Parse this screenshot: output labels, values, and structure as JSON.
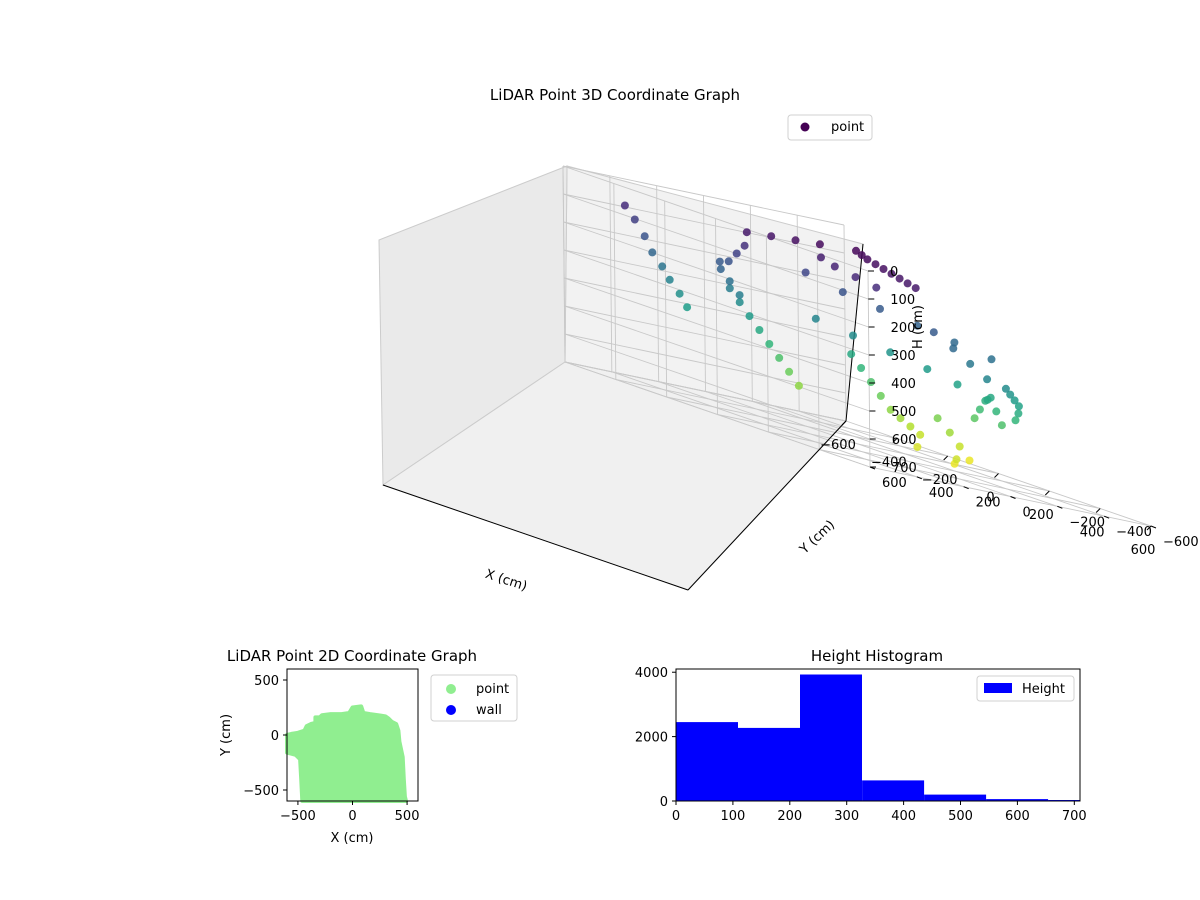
{
  "chart_data": [
    {
      "type": "scatter3d",
      "title": "LiDAR Point 3D Coordinate Graph",
      "xlabel": "X (cm)",
      "ylabel": "Y (cm)",
      "zlabel": "H (cm)",
      "xlim": [
        -600,
        600
      ],
      "ylim": [
        -600,
        600
      ],
      "zlim": [
        700,
        0
      ],
      "xticks": [
        -600,
        -400,
        -200,
        0,
        200,
        400,
        600
      ],
      "yticks": [
        -600,
        -400,
        -200,
        0,
        200,
        400,
        600
      ],
      "zticks": [
        0,
        100,
        200,
        300,
        400,
        500,
        600,
        700
      ],
      "xtick_labels": [
        "−600",
        "−400",
        "−200",
        "0",
        "200",
        "400",
        "600"
      ],
      "ytick_labels": [
        "−600",
        "−400",
        "−200",
        "0",
        "200",
        "400",
        "600"
      ],
      "ztick_labels": [
        "0",
        "100",
        "200",
        "300",
        "400",
        "500",
        "600",
        "700"
      ],
      "colormap": "viridis",
      "grid": true,
      "legend": {
        "position": "top-right",
        "entries": [
          {
            "label": "point",
            "color": "#440154"
          }
        ]
      },
      "series": [
        {
          "name": "point",
          "description_values": "sample of point cloud, [x, y, h] in cm",
          "points": [
            [
              -560,
              380,
              90
            ],
            [
              -540,
              360,
              130
            ],
            [
              -520,
              340,
              180
            ],
            [
              -500,
              330,
              230
            ],
            [
              -480,
              310,
              270
            ],
            [
              -460,
              300,
              310
            ],
            [
              -440,
              280,
              350
            ],
            [
              -420,
              270,
              390
            ],
            [
              -400,
              150,
              200
            ],
            [
              -380,
              130,
              260
            ],
            [
              -360,
              110,
              300
            ],
            [
              -500,
              0,
              300
            ],
            [
              -480,
              -20,
              340
            ],
            [
              -460,
              -40,
              380
            ],
            [
              -440,
              -60,
              420
            ],
            [
              -420,
              -80,
              460
            ],
            [
              -400,
              -100,
              500
            ],
            [
              -380,
              -120,
              540
            ],
            [
              -360,
              -140,
              580
            ],
            [
              -300,
              -300,
              420
            ],
            [
              -280,
              -320,
              460
            ],
            [
              -260,
              -340,
              500
            ],
            [
              -240,
              -360,
              540
            ],
            [
              -220,
              -380,
              580
            ],
            [
              -200,
              -400,
              600
            ],
            [
              -180,
              -420,
              620
            ],
            [
              -160,
              -440,
              640
            ],
            [
              -100,
              -450,
              560
            ],
            [
              -80,
              -480,
              600
            ],
            [
              -60,
              -500,
              640
            ],
            [
              -40,
              -520,
              680
            ],
            [
              0,
              -500,
              520
            ],
            [
              40,
              -480,
              480
            ],
            [
              80,
              -460,
              440
            ],
            [
              120,
              -440,
              420
            ],
            [
              160,
              -420,
              460
            ],
            [
              200,
              -400,
              500
            ],
            [
              300,
              -350,
              460
            ],
            [
              330,
              -330,
              430
            ],
            [
              360,
              -300,
              400
            ],
            [
              380,
              -260,
              380
            ],
            [
              400,
              -220,
              360
            ],
            [
              420,
              -180,
              340
            ],
            [
              0,
              0,
              10
            ],
            [
              50,
              30,
              15
            ],
            [
              100,
              60,
              20
            ],
            [
              150,
              80,
              25
            ],
            [
              200,
              100,
              30
            ],
            [
              250,
              120,
              35
            ],
            [
              300,
              140,
              40
            ],
            [
              350,
              160,
              45
            ],
            [
              400,
              180,
              50
            ],
            [
              -50,
              100,
              20
            ],
            [
              -100,
              150,
              30
            ],
            [
              -150,
              200,
              40
            ],
            [
              -200,
              250,
              50
            ],
            [
              0,
              150,
              60
            ],
            [
              100,
              200,
              70
            ],
            [
              200,
              220,
              80
            ],
            [
              300,
              240,
              90
            ],
            [
              -200,
              0,
              150
            ],
            [
              -100,
              -50,
              180
            ],
            [
              0,
              -100,
              200
            ],
            [
              100,
              -150,
              220
            ],
            [
              200,
              -200,
              240
            ],
            [
              300,
              -250,
              260
            ],
            [
              -300,
              -150,
              320
            ],
            [
              -200,
              -200,
              340
            ],
            [
              -100,
              -250,
              360
            ],
            [
              0,
              -300,
              380
            ],
            [
              100,
              -320,
              400
            ],
            [
              200,
              -340,
              420
            ],
            [
              350,
              50,
              200
            ],
            [
              380,
              0,
              240
            ],
            [
              400,
              -50,
              280
            ],
            [
              420,
              -100,
              320
            ],
            [
              -350,
              200,
              220
            ],
            [
              -300,
              220,
              180
            ],
            [
              -250,
              240,
              140
            ],
            [
              -200,
              260,
              100
            ],
            [
              50,
              -200,
              660
            ],
            [
              150,
              -250,
              680
            ],
            [
              250,
              -150,
              650
            ]
          ]
        }
      ]
    },
    {
      "type": "scatter",
      "title": "LiDAR Point 2D Coordinate Graph",
      "xlabel": "X (cm)",
      "ylabel": "Y (cm)",
      "xlim": [
        -600,
        600
      ],
      "ylim": [
        -600,
        600
      ],
      "xticks": [
        -500,
        0,
        500
      ],
      "yticks": [
        -500,
        0,
        500
      ],
      "xtick_labels": [
        "−500",
        "0",
        "500"
      ],
      "ytick_labels": [
        "−500",
        "0",
        "500"
      ],
      "legend": {
        "position": "outside-right",
        "entries": [
          {
            "label": "point",
            "color": "#90ee90"
          },
          {
            "label": "wall",
            "color": "#0000ff"
          }
        ]
      },
      "series": [
        {
          "name": "point",
          "color": "#90ee90",
          "outline": [
            [
              -600,
              0
            ],
            [
              -560,
              10
            ],
            [
              -500,
              20
            ],
            [
              -440,
              40
            ],
            [
              -420,
              80
            ],
            [
              -380,
              100
            ],
            [
              -340,
              110
            ],
            [
              -340,
              160
            ],
            [
              -300,
              160
            ],
            [
              -280,
              180
            ],
            [
              -200,
              190
            ],
            [
              -100,
              190
            ],
            [
              -30,
              200
            ],
            [
              0,
              250
            ],
            [
              80,
              260
            ],
            [
              100,
              200
            ],
            [
              160,
              190
            ],
            [
              300,
              170
            ],
            [
              330,
              150
            ],
            [
              360,
              120
            ],
            [
              400,
              100
            ],
            [
              420,
              40
            ],
            [
              430,
              -60
            ],
            [
              460,
              -200
            ],
            [
              470,
              -400
            ],
            [
              480,
              -560
            ],
            [
              490,
              -600
            ],
            [
              -460,
              -600
            ],
            [
              -470,
              -400
            ],
            [
              -480,
              -220
            ],
            [
              -520,
              -180
            ],
            [
              -600,
              -160
            ]
          ]
        },
        {
          "name": "wall",
          "color": "#0000ff",
          "outline": []
        }
      ]
    },
    {
      "type": "bar",
      "title": "Height Histogram",
      "xlabel": "",
      "ylabel": "",
      "xlim": [
        0,
        710
      ],
      "ylim": [
        0,
        4100
      ],
      "xticks": [
        0,
        100,
        200,
        300,
        400,
        500,
        600,
        700
      ],
      "yticks": [
        0,
        2000,
        4000
      ],
      "xtick_labels": [
        "0",
        "100",
        "200",
        "300",
        "400",
        "500",
        "600",
        "700"
      ],
      "ytick_labels": [
        "0",
        "2000",
        "4000"
      ],
      "bin_edges": [
        0,
        109,
        218,
        327,
        436,
        545,
        654,
        763
      ],
      "values": [
        2450,
        2270,
        3930,
        640,
        200,
        60,
        30
      ],
      "legend": {
        "position": "top-right",
        "entries": [
          {
            "label": "Height",
            "color": "#0000ff"
          }
        ]
      },
      "series": [
        {
          "name": "Height",
          "color": "#0000ff"
        }
      ]
    }
  ]
}
